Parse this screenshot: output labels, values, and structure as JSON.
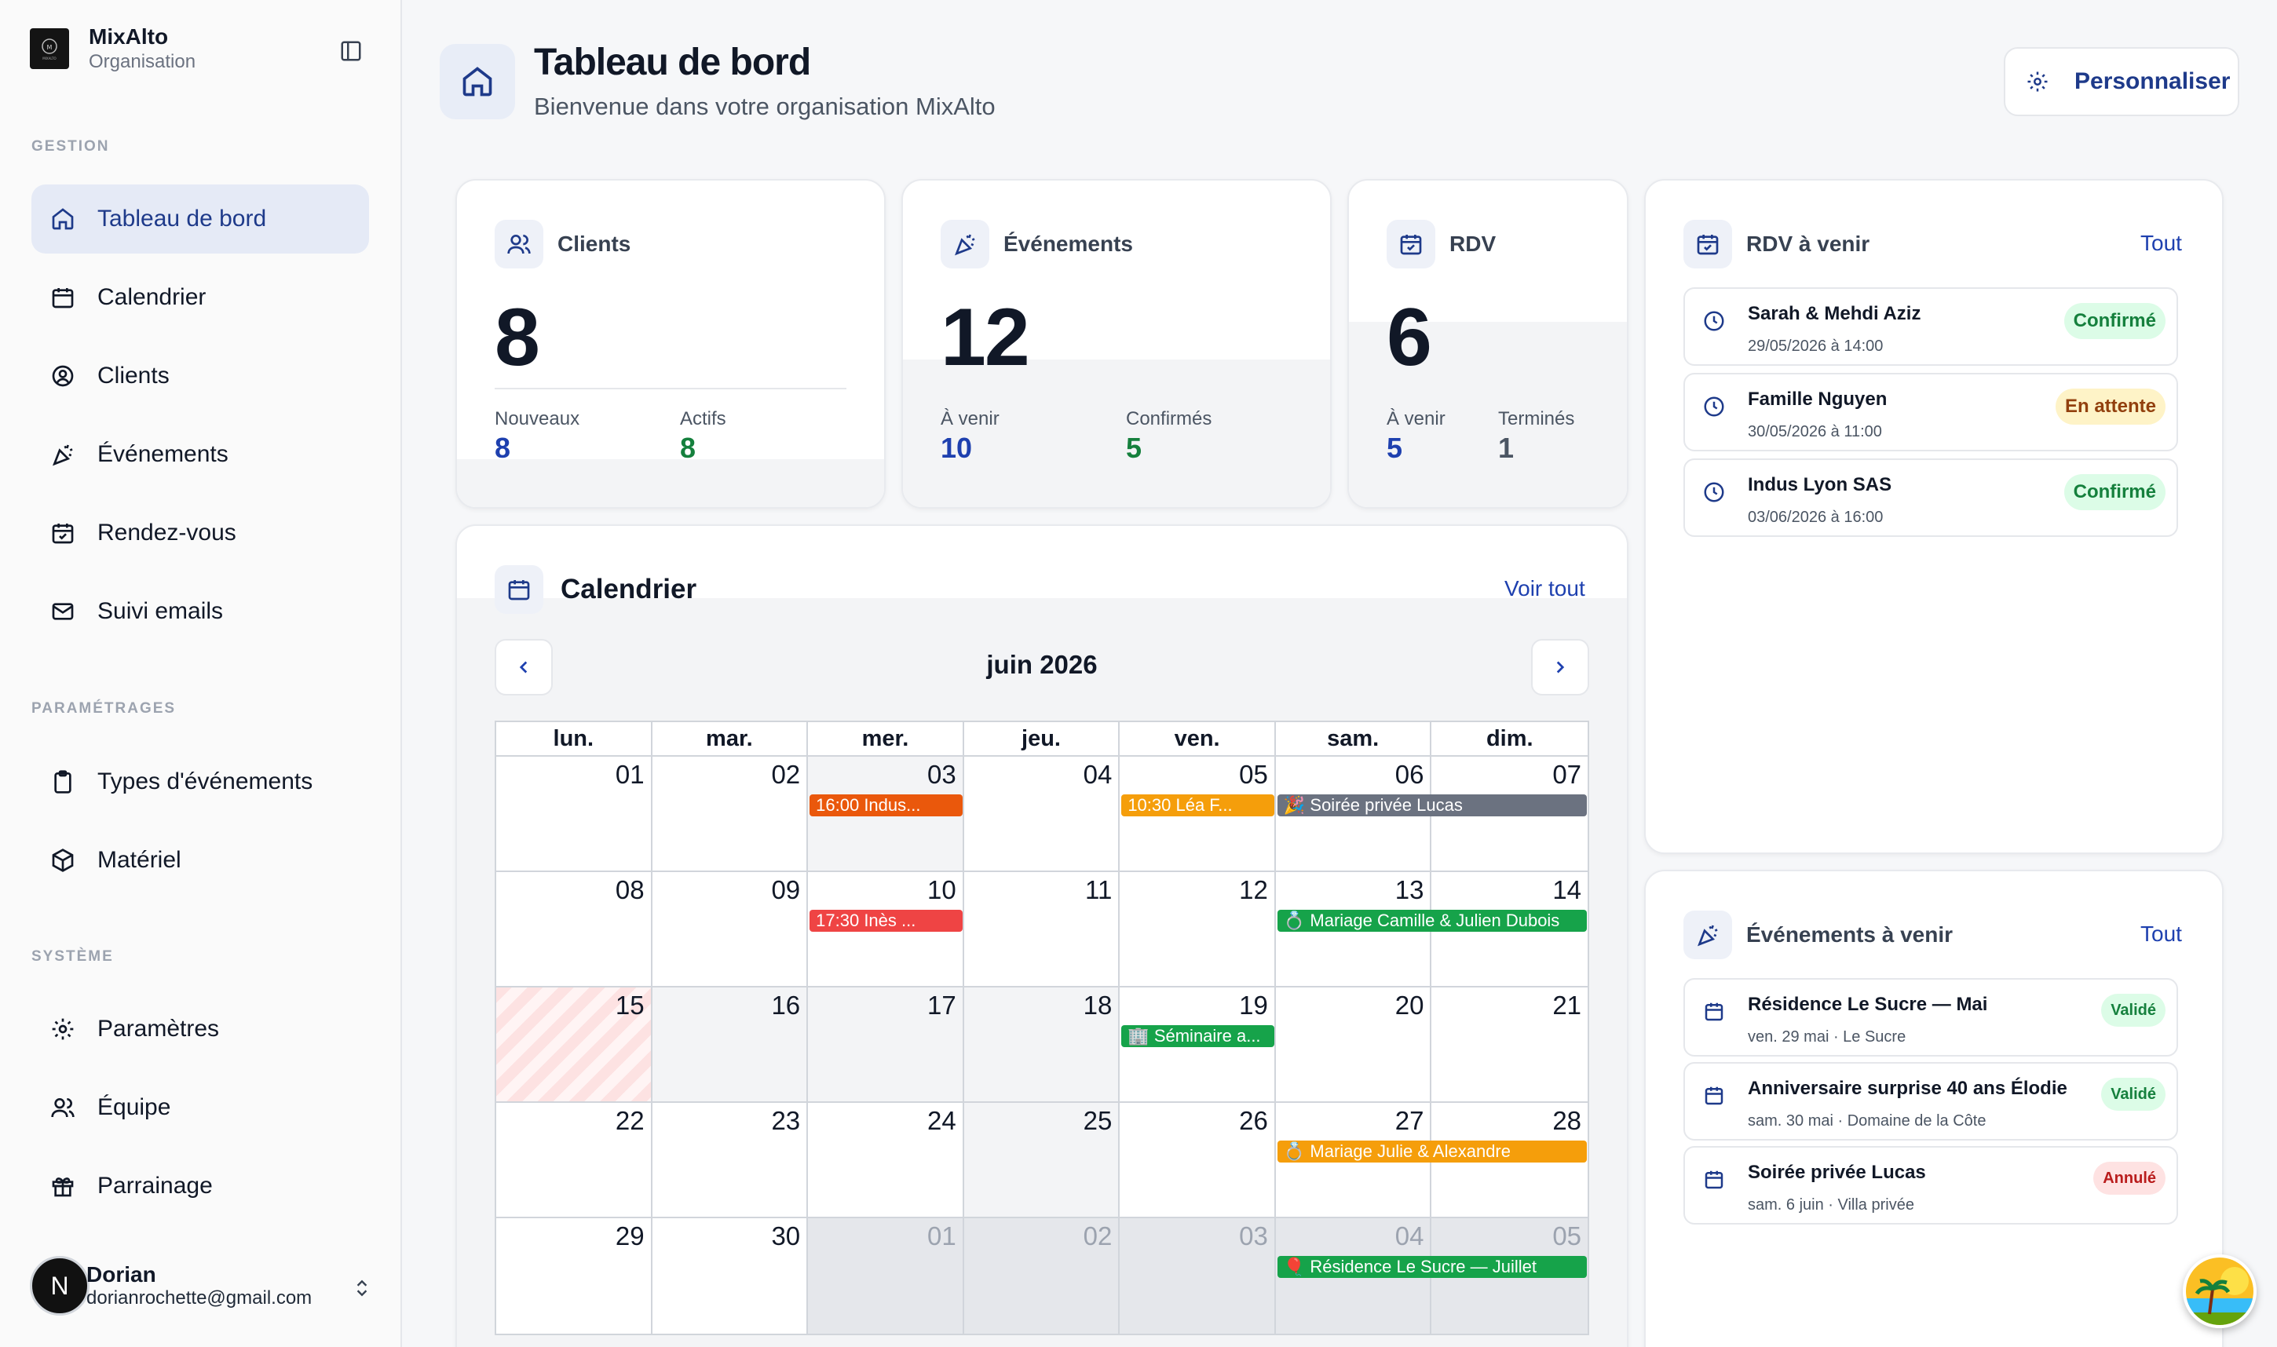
{
  "org": {
    "name": "MixAlto",
    "subtitle": "Organisation",
    "logo_text": "MIXALTO"
  },
  "sidebar": {
    "section_gestion": "GESTION",
    "section_param": "PARAMÉTRAGES",
    "section_system": "SYSTÈME",
    "items": [
      {
        "label": "Tableau de bord",
        "icon": "home-icon",
        "active": true
      },
      {
        "label": "Calendrier",
        "icon": "calendar-icon"
      },
      {
        "label": "Clients",
        "icon": "user-circle-icon"
      },
      {
        "label": "Événements",
        "icon": "party-icon"
      },
      {
        "label": "Rendez-vous",
        "icon": "calendar-check-icon"
      },
      {
        "label": "Suivi emails",
        "icon": "mail-icon"
      },
      {
        "label": "Types d'événements",
        "icon": "clipboard-icon"
      },
      {
        "label": "Matériel",
        "icon": "package-icon"
      },
      {
        "label": "Paramètres",
        "icon": "gear-icon"
      },
      {
        "label": "Équipe",
        "icon": "users-icon"
      },
      {
        "label": "Parrainage",
        "icon": "gift-icon"
      }
    ]
  },
  "user": {
    "initial": "N",
    "name": "Dorian",
    "email": "dorianrochette@gmail.com"
  },
  "header": {
    "title": "Tableau de bord",
    "subtitle": "Bienvenue dans votre organisation MixAlto",
    "button": "Personnaliser"
  },
  "stats": {
    "clients": {
      "title": "Clients",
      "value": "8",
      "l1": "Nouveaux",
      "v1": "8",
      "l2": "Actifs",
      "v2": "8"
    },
    "events": {
      "title": "Événements",
      "value": "12",
      "l1": "À venir",
      "v1": "10",
      "l2": "Confirmés",
      "v2": "5"
    },
    "rdv": {
      "title": "RDV",
      "value": "6",
      "l1": "À venir",
      "v1": "5",
      "l2": "Terminés",
      "v2": "1"
    }
  },
  "calendar": {
    "title": "Calendrier",
    "link": "Voir tout",
    "month": "juin 2026",
    "weekdays": [
      "lun.",
      "mar.",
      "mer.",
      "jeu.",
      "ven.",
      "sam.",
      "dim."
    ],
    "weeks": [
      [
        "01",
        "02",
        "03",
        "04",
        "05",
        "06",
        "07"
      ],
      [
        "08",
        "09",
        "10",
        "11",
        "12",
        "13",
        "14"
      ],
      [
        "15",
        "16",
        "17",
        "18",
        "19",
        "20",
        "21"
      ],
      [
        "22",
        "23",
        "24",
        "25",
        "26",
        "27",
        "28"
      ],
      [
        "29",
        "30",
        "01",
        "02",
        "03",
        "04",
        "05"
      ]
    ],
    "events": {
      "e1": "16:00 Indus...",
      "e2": "10:30 Léa F...",
      "e3": "🎉 Soirée privée Lucas",
      "e4": "17:30 Inès ...",
      "e5": "💍 Mariage Camille & Julien Dubois",
      "e6": "🏢 Séminaire a...",
      "e7": "💍 Mariage Julie & Alexandre",
      "e8": "🎈 Résidence Le Sucre — Juillet"
    },
    "colors": {
      "orange": "#ea580c",
      "amber": "#f59e0b",
      "slate": "#6b7280",
      "red": "#ef4444",
      "green": "#16a34a"
    }
  },
  "rdv_panel": {
    "title": "RDV à venir",
    "link": "Tout",
    "items": [
      {
        "name": "Sarah & Mehdi Aziz",
        "when": "29/05/2026 à 14:00",
        "status": "Confirmé"
      },
      {
        "name": "Famille Nguyen",
        "when": "30/05/2026 à 11:00",
        "status": "En attente"
      },
      {
        "name": "Indus Lyon SAS",
        "when": "03/06/2026 à 16:00",
        "status": "Confirmé"
      }
    ]
  },
  "events_panel": {
    "title": "Événements à venir",
    "link": "Tout",
    "items": [
      {
        "name": "Résidence Le Sucre — Mai",
        "when": "ven. 29 mai · Le Sucre",
        "status": "Validé"
      },
      {
        "name": "Anniversaire surprise 40 ans Élodie",
        "when": "sam. 30 mai · Domaine de la Côte",
        "status": "Validé"
      },
      {
        "name": "Soirée privée Lucas",
        "when": "sam. 6 juin · Villa privée",
        "status": "Annulé"
      }
    ]
  }
}
